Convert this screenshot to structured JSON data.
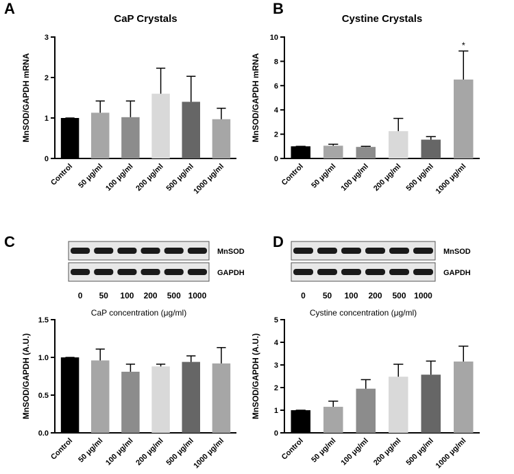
{
  "chart_data": [
    {
      "type": "bar",
      "panel": "A",
      "title": "CaP Crystals",
      "ylabel": "MnSOD/GAPDH mRNA",
      "categories": [
        "Control",
        "50 μg/ml",
        "100 μg/ml",
        "200 μg/ml",
        "500 μg/ml",
        "1000 μg/ml"
      ],
      "values": [
        1.0,
        1.13,
        1.02,
        1.6,
        1.4,
        0.97
      ],
      "errors": [
        0,
        0.29,
        0.4,
        0.63,
        0.63,
        0.27
      ],
      "colors": [
        "#000000",
        "#a6a6a6",
        "#8c8c8c",
        "#d9d9d9",
        "#666666",
        "#a6a6a6"
      ],
      "ylim": [
        0,
        3
      ],
      "yticks": [
        0,
        1,
        2,
        3
      ]
    },
    {
      "type": "bar",
      "panel": "B",
      "title": "Cystine Crystals",
      "ylabel": "MnSOD/GAPDH mRNA",
      "categories": [
        "Control",
        "50 μg/ml",
        "100 μg/ml",
        "200 μg/ml",
        "500 μg/ml",
        "1000 μg/ml"
      ],
      "values": [
        1.0,
        1.05,
        0.95,
        2.25,
        1.55,
        6.5
      ],
      "errors": [
        0,
        0.12,
        0.05,
        1.05,
        0.25,
        2.35
      ],
      "colors": [
        "#000000",
        "#a6a6a6",
        "#8c8c8c",
        "#d9d9d9",
        "#666666",
        "#a6a6a6"
      ],
      "ylim": [
        0,
        10
      ],
      "yticks": [
        0,
        2,
        4,
        6,
        8,
        10
      ],
      "annotation": "*"
    },
    {
      "type": "bar",
      "panel": "C",
      "ylabel": "MnSOD/GAPDH (A.U.)",
      "blot": {
        "proteins": [
          "MnSOD",
          "GAPDH"
        ],
        "lanes": [
          "0",
          "50",
          "100",
          "200",
          "500",
          "1000"
        ],
        "caption": "CaP concentration (μg/ml)"
      },
      "categories": [
        "Control",
        "50 μg/ml",
        "100 μg/ml",
        "200 μg/ml",
        "500 μg/ml",
        "1000 μg/ml"
      ],
      "values": [
        1.0,
        0.96,
        0.81,
        0.88,
        0.94,
        0.92
      ],
      "errors": [
        0,
        0.15,
        0.1,
        0.03,
        0.08,
        0.21
      ],
      "colors": [
        "#000000",
        "#a6a6a6",
        "#8c8c8c",
        "#d9d9d9",
        "#666666",
        "#a6a6a6"
      ],
      "ylim": [
        0,
        1.5
      ],
      "yticks": [
        {
          "value": 0,
          "label": "0.0"
        },
        0.5,
        {
          "value": 1,
          "label": "1.0"
        },
        1.5
      ]
    },
    {
      "type": "bar",
      "panel": "D",
      "ylabel": "MnSOD/GAPDH (A.U.)",
      "blot": {
        "proteins": [
          "MnSOD",
          "GAPDH"
        ],
        "lanes": [
          "0",
          "50",
          "100",
          "200",
          "500",
          "1000"
        ],
        "caption": "Cystine concentration (μg/ml)"
      },
      "categories": [
        "Control",
        "50 μg/ml",
        "100 μg/ml",
        "200 μg/ml",
        "500 μg/ml",
        "1000 μg/ml"
      ],
      "values": [
        1.0,
        1.15,
        1.95,
        2.48,
        2.57,
        3.15
      ],
      "errors": [
        0,
        0.25,
        0.4,
        0.55,
        0.6,
        0.68
      ],
      "colors": [
        "#000000",
        "#a6a6a6",
        "#8c8c8c",
        "#d9d9d9",
        "#666666",
        "#a6a6a6"
      ],
      "ylim": [
        0,
        5
      ],
      "yticks": [
        0,
        1,
        2,
        3,
        4,
        5
      ]
    }
  ]
}
